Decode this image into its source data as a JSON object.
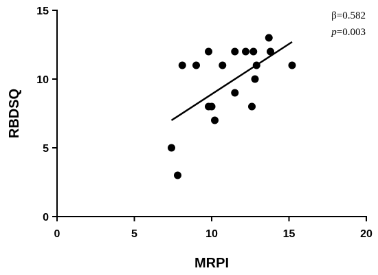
{
  "chart_data": {
    "type": "scatter",
    "xlabel": "MRPI",
    "ylabel": "RBDSQ",
    "xlim": [
      0,
      20
    ],
    "ylim": [
      0,
      15
    ],
    "x_ticks": [
      0,
      5,
      10,
      15,
      20
    ],
    "y_ticks": [
      0,
      5,
      10,
      15
    ],
    "grid": false,
    "points": [
      {
        "x": 7.4,
        "y": 5
      },
      {
        "x": 7.8,
        "y": 3
      },
      {
        "x": 8.1,
        "y": 11
      },
      {
        "x": 9.0,
        "y": 11
      },
      {
        "x": 9.8,
        "y": 12
      },
      {
        "x": 9.8,
        "y": 8
      },
      {
        "x": 10.0,
        "y": 8
      },
      {
        "x": 10.2,
        "y": 7
      },
      {
        "x": 10.7,
        "y": 11
      },
      {
        "x": 11.5,
        "y": 12
      },
      {
        "x": 11.5,
        "y": 9
      },
      {
        "x": 12.2,
        "y": 12
      },
      {
        "x": 12.6,
        "y": 8
      },
      {
        "x": 12.7,
        "y": 12
      },
      {
        "x": 12.8,
        "y": 10
      },
      {
        "x": 12.9,
        "y": 11
      },
      {
        "x": 13.7,
        "y": 13
      },
      {
        "x": 13.8,
        "y": 12
      },
      {
        "x": 15.2,
        "y": 11
      }
    ],
    "fit_line": {
      "x": [
        7.4,
        15.2
      ],
      "y": [
        7.0,
        12.7
      ]
    },
    "annotations": [
      {
        "prefix": "β",
        "text": "=0.582"
      },
      {
        "prefix": "p",
        "text": "=0.003"
      }
    ]
  }
}
